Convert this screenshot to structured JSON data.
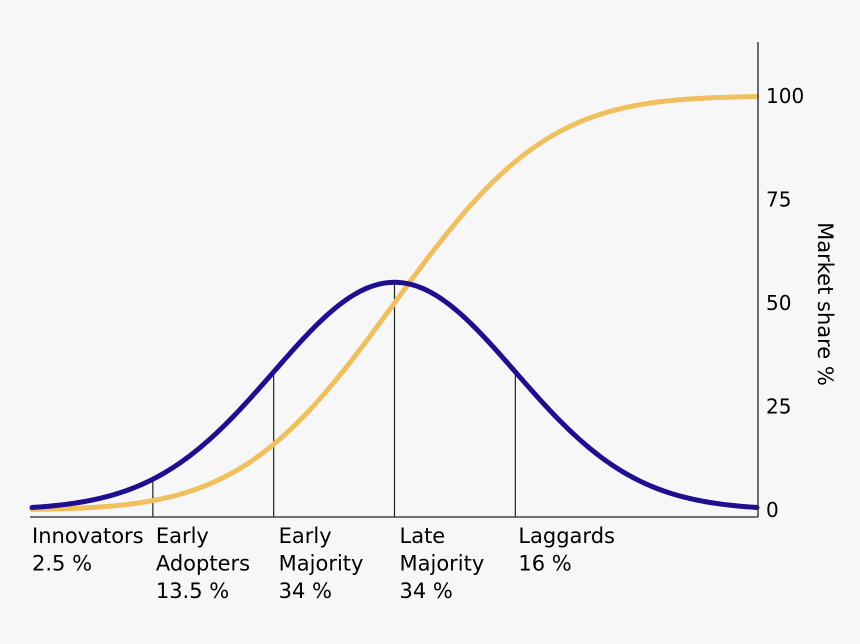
{
  "chart_data": {
    "type": "line",
    "title": "",
    "xlabel": "",
    "ylabel": "Market share %",
    "ylim": [
      0,
      112
    ],
    "yticks": [
      0,
      25,
      50,
      75,
      100
    ],
    "y_axis_side": "right",
    "grid": false,
    "legend": "none",
    "series": [
      {
        "role": "adoption-bell-curve",
        "color": "#1f0f8f",
        "kind": "normal-density",
        "x_sd_range": [
          -3,
          3
        ],
        "peak_value": 55
      },
      {
        "role": "cumulative-s-curve",
        "color": "#f0c060",
        "kind": "normal-cdf",
        "x_sd_range": [
          -3,
          3
        ],
        "max_value": 100
      }
    ],
    "dividers_sd": [
      -2,
      -1,
      0,
      1
    ],
    "segments": [
      {
        "name": "Innovators",
        "share": "2.5 %"
      },
      {
        "name": "Early\nAdopters",
        "share": "13.5 %"
      },
      {
        "name": "Early\nMajority",
        "share": "34 %"
      },
      {
        "name": "Late\nMajority",
        "share": "34 %"
      },
      {
        "name": "Laggards",
        "share": "16 %"
      }
    ]
  }
}
